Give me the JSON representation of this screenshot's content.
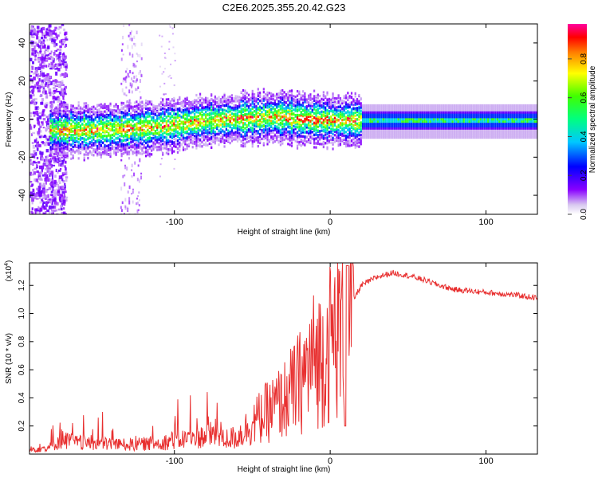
{
  "title": "C2E6.2025.355.20.42.G23",
  "chart_data": [
    {
      "type": "heatmap",
      "name": "spectrogram",
      "xlabel": "Height of straight line (km)",
      "ylabel": "Frequency (Hz)",
      "xlim": [
        -193,
        133
      ],
      "ylim": [
        -50,
        50
      ],
      "xticks": [
        -100,
        0,
        100
      ],
      "xtick_labels": [
        "-100",
        "0",
        "100"
      ],
      "yticks": [
        -40,
        -20,
        0,
        20,
        40
      ],
      "ytick_labels": [
        "-40",
        "-20",
        "0",
        "20",
        "40"
      ],
      "colorbar": {
        "label": "Normalized spectral amplitude",
        "range": [
          0,
          0.98
        ],
        "ticks": [
          0.0,
          0.2,
          0.4,
          0.6,
          0.8
        ],
        "tick_labels": [
          "0.0",
          "0.2",
          "0.4",
          "0.6",
          "0.8"
        ]
      },
      "ridge": {
        "x": [
          -180,
          -150,
          -120,
          -100,
          -80,
          -60,
          -40,
          -30,
          -20,
          0,
          20,
          60,
          80,
          100,
          133
        ],
        "freq": [
          -5,
          -5,
          -4,
          -2,
          0,
          1,
          2,
          2,
          1,
          0,
          0,
          0,
          0,
          0,
          0
        ]
      }
    },
    {
      "type": "line",
      "name": "snr",
      "xlabel": "Height of straight line (km)",
      "ylabel": "SNR (10 * v/v)",
      "y_scale_label": "(x10",
      "y_scale_exp": "4",
      "y_scale_close": ")",
      "xlim": [
        -193,
        133
      ],
      "ylim": [
        0,
        1.36
      ],
      "xticks": [
        -100,
        0,
        100
      ],
      "xtick_labels": [
        "-100",
        "0",
        "100"
      ],
      "yticks": [
        0.2,
        0.4,
        0.6,
        0.8,
        1.0,
        1.2
      ],
      "ytick_labels": [
        "0.2",
        "0.4",
        "0.6",
        "0.8",
        "1.0",
        "1.2"
      ],
      "series": [
        {
          "name": "SNR",
          "color": "#e83030",
          "envelope_x": [
            -193,
            -180,
            -172,
            -165,
            -150,
            -130,
            -110,
            -100,
            -90,
            -80,
            -70,
            -60,
            -50,
            -40,
            -30,
            -20,
            -15,
            -10,
            -5,
            0,
            10,
            15,
            20,
            30,
            40,
            50,
            60,
            70,
            80,
            90,
            100,
            110,
            120,
            133
          ],
          "envelope_y": [
            0.02,
            0.03,
            0.07,
            0.05,
            0.05,
            0.04,
            0.05,
            0.06,
            0.07,
            0.08,
            0.1,
            0.12,
            0.22,
            0.3,
            0.38,
            0.5,
            0.6,
            0.68,
            0.7,
            0.8,
            0.95,
            1.1,
            1.2,
            1.26,
            1.29,
            1.27,
            1.24,
            1.2,
            1.17,
            1.16,
            1.15,
            1.14,
            1.13,
            1.11
          ]
        }
      ]
    }
  ]
}
